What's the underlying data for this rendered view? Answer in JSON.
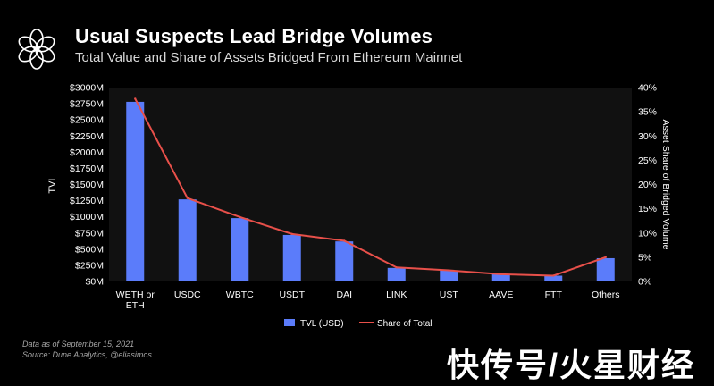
{
  "header": {
    "title": "Usual Suspects Lead Bridge Volumes",
    "subtitle": "Total Value and Share of Assets Bridged From Ethereum Mainnet"
  },
  "logo": {
    "icon": "flower-ring-icon"
  },
  "footer": {
    "note_date": "Data as of September 15, 2021",
    "note_source": "Source: Dune Analytics, @eliasimos"
  },
  "watermark": "快传号/火星财经",
  "colors": {
    "background": "#000000",
    "plot_background": "#111111",
    "bar": "#5b7cfa",
    "line": "#e8504a",
    "grid": "#2a2a2a",
    "text": "#ffffff"
  },
  "chart_data": {
    "type": "bar",
    "categories": [
      "WETH or ETH",
      "USDC",
      "WBTC",
      "USDT",
      "DAI",
      "LINK",
      "UST",
      "AAVE",
      "FTT",
      "Others"
    ],
    "series": [
      {
        "name": "TVL (USD)",
        "type": "bar",
        "axis": "left",
        "values": [
          2780,
          1270,
          980,
          720,
          620,
          210,
          170,
          110,
          90,
          360
        ]
      },
      {
        "name": "Share of Total",
        "type": "line",
        "axis": "right",
        "values": [
          37.7,
          17.2,
          13.3,
          9.8,
          8.4,
          2.9,
          2.3,
          1.5,
          1.2,
          5.0
        ]
      }
    ],
    "ylabel": "TVL",
    "y2label": "Asset Share of Bridged Volume",
    "ylim": [
      0,
      3000
    ],
    "y2lim": [
      0,
      40
    ],
    "yticks": [
      "$0M",
      "$250M",
      "$500M",
      "$750M",
      "$1000M",
      "$1250M",
      "$1500M",
      "$1750M",
      "$2000M",
      "$2250M",
      "$2500M",
      "$2750M",
      "$3000M"
    ],
    "y2ticks": [
      "0%",
      "5%",
      "10%",
      "15%",
      "20%",
      "25%",
      "30%",
      "35%",
      "40%"
    ],
    "grid": false,
    "legend_position": "bottom-center"
  }
}
